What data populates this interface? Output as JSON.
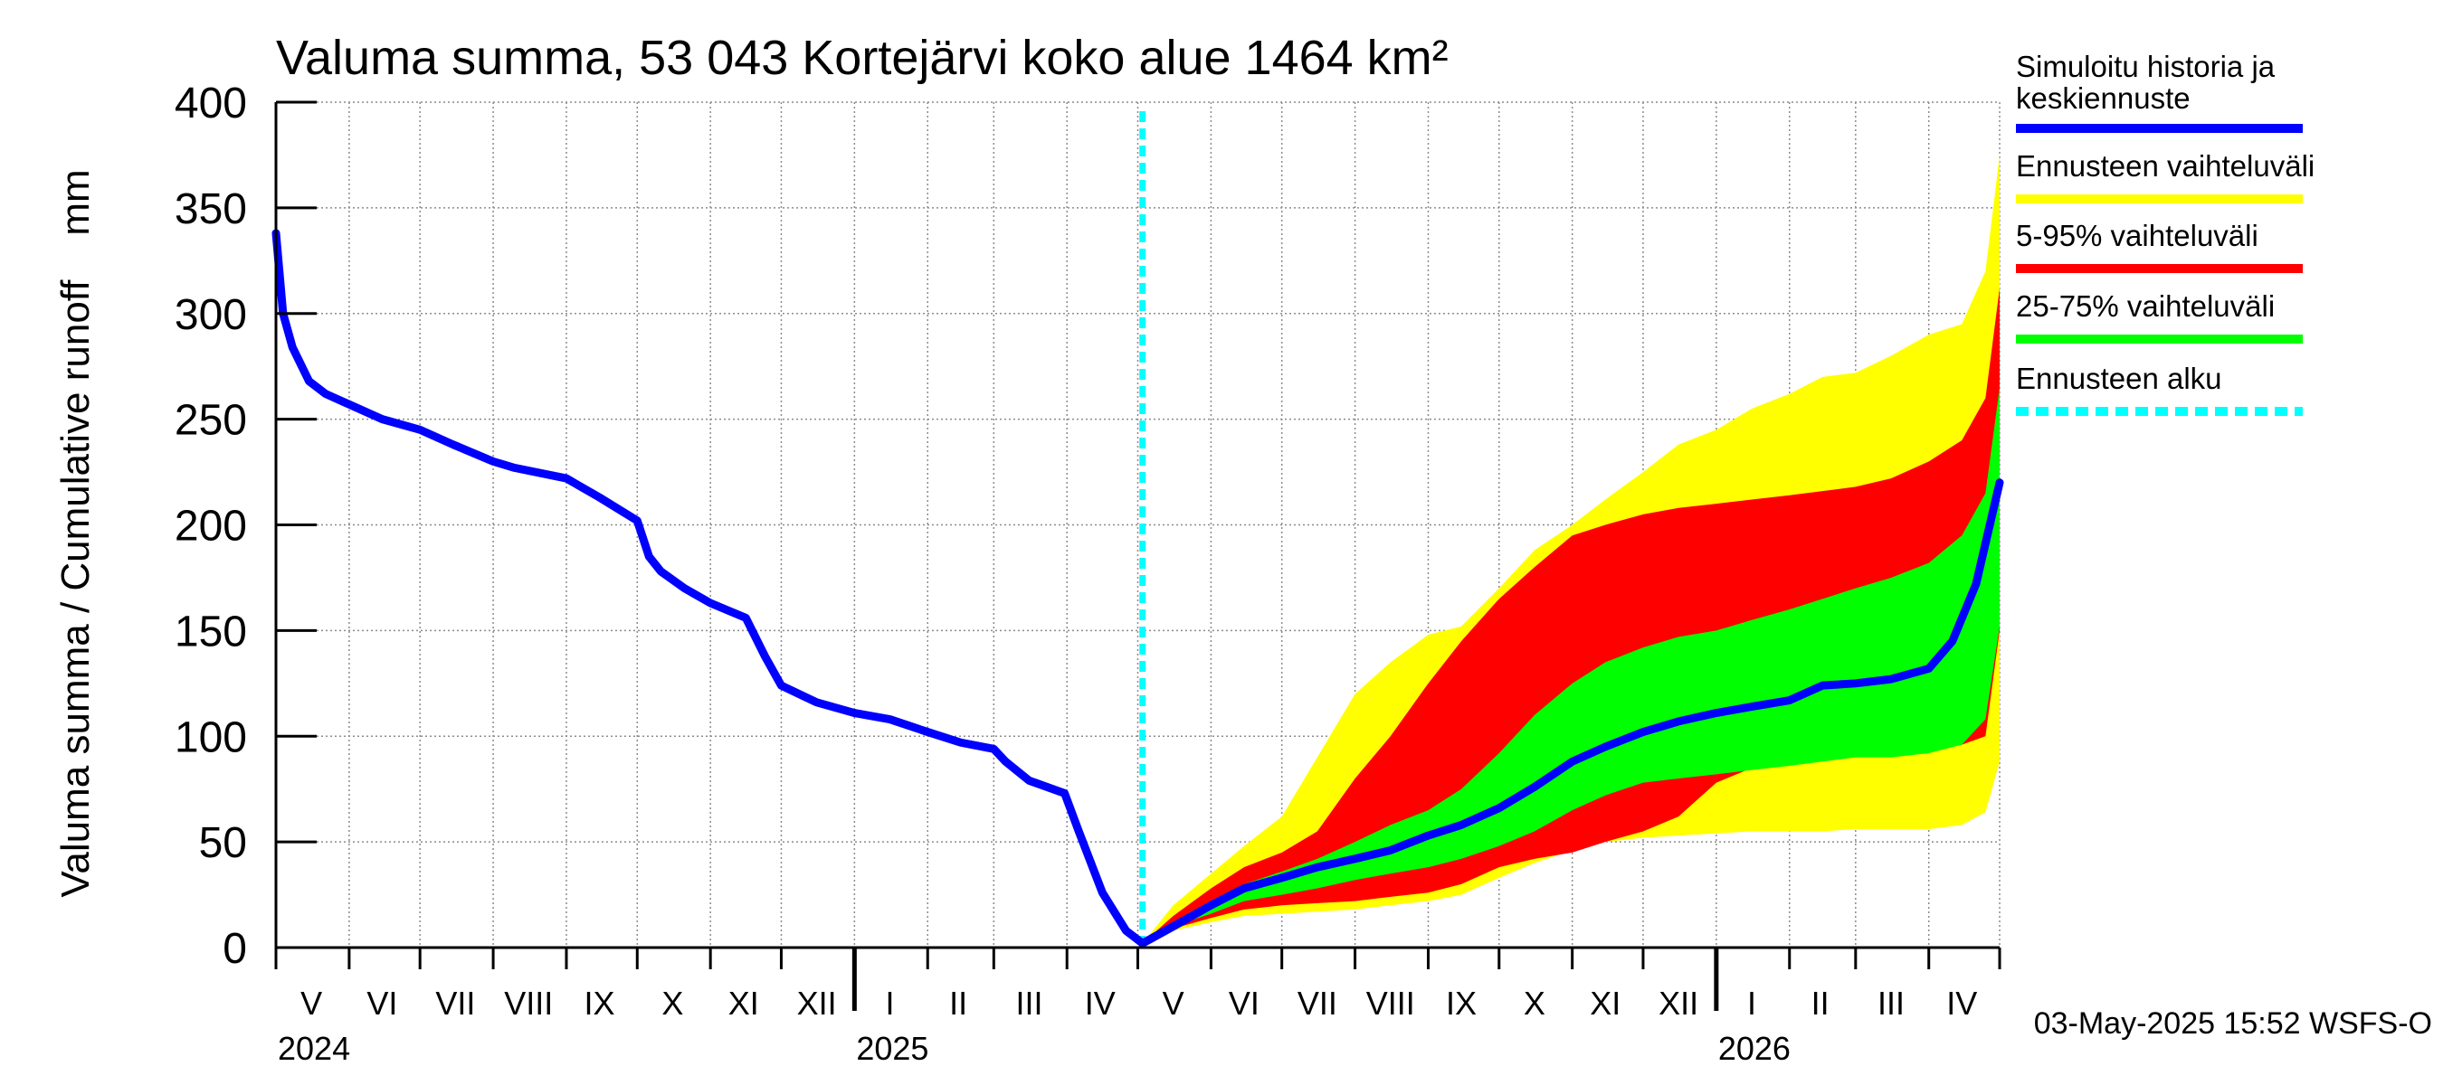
{
  "chart_data": {
    "type": "area",
    "title": "Valuma summa, 53 043 Kortejärvi koko alue 1464 km²",
    "ylabel": "Valuma summa / Cumulative runoff    mm",
    "ylim": [
      0,
      400
    ],
    "yticks": [
      0,
      50,
      100,
      150,
      200,
      250,
      300,
      350,
      400
    ],
    "grid": true,
    "legend_position": "right",
    "timestamp": "03-May-2025 15:52 WSFS-O",
    "x_start": "2024-05-01",
    "x_end": "2026-05-01",
    "forecast_start": "2025-05-03",
    "month_labels": [
      {
        "label": "V",
        "date": "2024-05-16"
      },
      {
        "label": "VI",
        "date": "2024-06-15"
      },
      {
        "label": "VII",
        "date": "2024-07-16"
      },
      {
        "label": "VIII",
        "date": "2024-08-16"
      },
      {
        "label": "IX",
        "date": "2024-09-15"
      },
      {
        "label": "X",
        "date": "2024-10-16"
      },
      {
        "label": "XI",
        "date": "2024-11-15"
      },
      {
        "label": "XII",
        "date": "2024-12-16"
      },
      {
        "label": "I",
        "date": "2025-01-16"
      },
      {
        "label": "II",
        "date": "2025-02-14"
      },
      {
        "label": "III",
        "date": "2025-03-16"
      },
      {
        "label": "IV",
        "date": "2025-04-15"
      },
      {
        "label": "V",
        "date": "2025-05-16"
      },
      {
        "label": "VI",
        "date": "2025-06-15"
      },
      {
        "label": "VII",
        "date": "2025-07-16"
      },
      {
        "label": "VIII",
        "date": "2025-08-16"
      },
      {
        "label": "IX",
        "date": "2025-09-15"
      },
      {
        "label": "X",
        "date": "2025-10-16"
      },
      {
        "label": "XI",
        "date": "2025-11-15"
      },
      {
        "label": "XII",
        "date": "2025-12-16"
      },
      {
        "label": "I",
        "date": "2026-01-16"
      },
      {
        "label": "II",
        "date": "2026-02-14"
      },
      {
        "label": "III",
        "date": "2026-03-16"
      },
      {
        "label": "IV",
        "date": "2026-04-15"
      }
    ],
    "year_labels": [
      {
        "label": "2024",
        "date": "2024-05-01"
      },
      {
        "label": "2025",
        "date": "2025-01-01"
      },
      {
        "label": "2026",
        "date": "2026-01-01"
      }
    ],
    "legend": [
      {
        "label": "Simuloitu historia ja\nkeskiennuste",
        "color": "#0000ff",
        "style": "solid"
      },
      {
        "label": "Ennusteen vaihteluväli",
        "color": "#ffff00",
        "style": "solid"
      },
      {
        "label": "5-95% vaihteluväli",
        "color": "#ff0000",
        "style": "solid"
      },
      {
        "label": "25-75% vaihteluväli",
        "color": "#00ff00",
        "style": "solid"
      },
      {
        "label": "Ennusteen alku",
        "color": "#00ffff",
        "style": "dashed"
      }
    ],
    "series": [
      {
        "name": "Simuloitu historia ja keskiennuste",
        "color": "#0000ff",
        "x": [
          "2024-05-01",
          "2024-05-04",
          "2024-05-08",
          "2024-05-15",
          "2024-05-22",
          "2024-06-01",
          "2024-06-15",
          "2024-07-01",
          "2024-07-15",
          "2024-08-01",
          "2024-08-10",
          "2024-09-01",
          "2024-09-15",
          "2024-10-01",
          "2024-10-06",
          "2024-10-11",
          "2024-10-21",
          "2024-11-01",
          "2024-11-16",
          "2024-11-24",
          "2024-12-01",
          "2024-12-16",
          "2025-01-01",
          "2025-01-16",
          "2025-02-01",
          "2025-02-15",
          "2025-03-01",
          "2025-03-06",
          "2025-03-16",
          "2025-03-31",
          "2025-04-06",
          "2025-04-16",
          "2025-04-26",
          "2025-05-03",
          "2025-05-16",
          "2025-06-01",
          "2025-06-15",
          "2025-07-01",
          "2025-07-16",
          "2025-08-01",
          "2025-08-16",
          "2025-09-01",
          "2025-09-15",
          "2025-10-01",
          "2025-10-16",
          "2025-11-01",
          "2025-11-15",
          "2025-12-01",
          "2025-12-16",
          "2026-01-01",
          "2026-01-16",
          "2026-02-01",
          "2026-02-15",
          "2026-03-01",
          "2026-03-16",
          "2026-04-01",
          "2026-04-11",
          "2026-04-21",
          "2026-05-01"
        ],
        "y": [
          338,
          300,
          284,
          268,
          262,
          257,
          250,
          245,
          238,
          230,
          227,
          222,
          213,
          202,
          185,
          178,
          170,
          163,
          156,
          138,
          124,
          116,
          111,
          108,
          102,
          97,
          94,
          88,
          79,
          73,
          55,
          26,
          8,
          2,
          10,
          20,
          28,
          33,
          38,
          42,
          46,
          53,
          58,
          66,
          76,
          88,
          95,
          102,
          107,
          111,
          114,
          117,
          124,
          125,
          127,
          132,
          145,
          172,
          220
        ]
      },
      {
        "name": "Ennusteen vaihteluväli",
        "color": "#ffff00",
        "x": [
          "2025-05-03",
          "2025-05-16",
          "2025-06-01",
          "2025-06-15",
          "2025-07-01",
          "2025-07-16",
          "2025-08-01",
          "2025-08-16",
          "2025-09-01",
          "2025-09-15",
          "2025-10-01",
          "2025-10-16",
          "2025-11-01",
          "2025-11-15",
          "2025-12-01",
          "2025-12-16",
          "2026-01-01",
          "2026-01-16",
          "2026-02-01",
          "2026-02-15",
          "2026-03-01",
          "2026-03-16",
          "2026-04-01",
          "2026-04-15",
          "2026-04-25",
          "2026-05-01"
        ],
        "upper": [
          2,
          20,
          35,
          48,
          62,
          90,
          120,
          135,
          148,
          152,
          170,
          188,
          200,
          212,
          225,
          238,
          245,
          255,
          262,
          270,
          272,
          280,
          290,
          295,
          320,
          375
        ],
        "lower": [
          2,
          8,
          12,
          15,
          16,
          17,
          18,
          20,
          22,
          25,
          33,
          40,
          46,
          50,
          52,
          53,
          54,
          55,
          55,
          55,
          56,
          56,
          56,
          58,
          64,
          88
        ]
      },
      {
        "name": "5-95% vaihteluväli",
        "color": "#ff0000",
        "x": [
          "2025-05-03",
          "2025-05-16",
          "2025-06-01",
          "2025-06-15",
          "2025-07-01",
          "2025-07-16",
          "2025-08-01",
          "2025-08-16",
          "2025-09-01",
          "2025-09-15",
          "2025-10-01",
          "2025-10-16",
          "2025-11-01",
          "2025-11-15",
          "2025-12-01",
          "2025-12-16",
          "2026-01-01",
          "2026-01-16",
          "2026-02-01",
          "2026-02-15",
          "2026-03-01",
          "2026-03-16",
          "2026-04-01",
          "2026-04-15",
          "2026-04-25",
          "2026-05-01"
        ],
        "upper": [
          2,
          15,
          28,
          38,
          45,
          55,
          80,
          100,
          125,
          145,
          165,
          180,
          195,
          200,
          205,
          208,
          210,
          212,
          214,
          216,
          218,
          222,
          230,
          240,
          260,
          312
        ],
        "lower": [
          2,
          9,
          14,
          18,
          20,
          21,
          22,
          24,
          26,
          30,
          38,
          42,
          45,
          50,
          55,
          62,
          78,
          85,
          92,
          95,
          95,
          95,
          95,
          96,
          100,
          150
        ]
      },
      {
        "name": "25-75% vaihteluväli",
        "color": "#00ff00",
        "x": [
          "2025-05-03",
          "2025-05-16",
          "2025-06-01",
          "2025-06-15",
          "2025-07-01",
          "2025-07-16",
          "2025-08-01",
          "2025-08-16",
          "2025-09-01",
          "2025-09-15",
          "2025-10-01",
          "2025-10-16",
          "2025-11-01",
          "2025-11-15",
          "2025-12-01",
          "2025-12-16",
          "2026-01-01",
          "2026-01-16",
          "2026-02-01",
          "2026-02-15",
          "2026-03-01",
          "2026-03-16",
          "2026-04-01",
          "2026-04-15",
          "2026-04-25",
          "2026-05-01"
        ],
        "upper": [
          2,
          12,
          22,
          30,
          36,
          42,
          50,
          58,
          65,
          75,
          92,
          110,
          125,
          135,
          142,
          147,
          150,
          155,
          160,
          165,
          170,
          175,
          182,
          195,
          215,
          265
        ],
        "lower": [
          2,
          10,
          16,
          22,
          25,
          28,
          32,
          35,
          38,
          42,
          48,
          55,
          65,
          72,
          78,
          80,
          82,
          84,
          86,
          88,
          90,
          90,
          92,
          96,
          108,
          152
        ]
      }
    ]
  }
}
